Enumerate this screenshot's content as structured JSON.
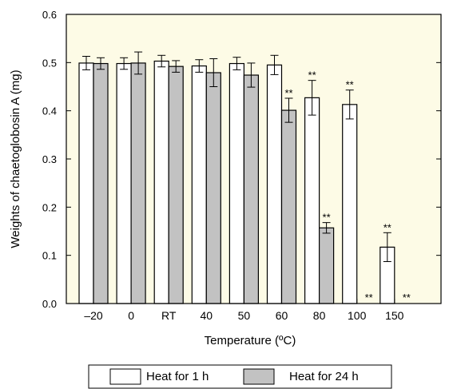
{
  "chart_data": {
    "type": "bar",
    "title": "",
    "xlabel": "Temperature (ºC)",
    "ylabel": "Weights of chaetoglobosin A (mg)",
    "categories": [
      "–20",
      "0",
      "RT",
      "40",
      "50",
      "60",
      "80",
      "100",
      "150"
    ],
    "ylim": [
      0,
      0.6
    ],
    "yticks": [
      "0.0",
      "0.1",
      "0.2",
      "0.3",
      "0.4",
      "0.5",
      "0.6"
    ],
    "grid": false,
    "legend_position": "bottom",
    "plot_background": "#fdfbe6",
    "series": [
      {
        "name": "Heat for 1 h",
        "fill": "#ffffff",
        "values": [
          0.499,
          0.498,
          0.503,
          0.493,
          0.498,
          0.495,
          0.427,
          0.413,
          0.117
        ],
        "errors": [
          0.014,
          0.012,
          0.012,
          0.013,
          0.013,
          0.02,
          0.036,
          0.03,
          0.03
        ],
        "annotations": [
          "",
          "",
          "",
          "",
          "",
          "",
          "**",
          "**",
          "**"
        ]
      },
      {
        "name": "Heat for 24 h",
        "fill": "#c2c2c2",
        "values": [
          0.498,
          0.499,
          0.492,
          0.479,
          0.474,
          0.401,
          0.157,
          0,
          0
        ],
        "errors": [
          0.012,
          0.023,
          0.012,
          0.029,
          0.025,
          0.025,
          0.011,
          0,
          0
        ],
        "annotations": [
          "",
          "",
          "",
          "",
          "",
          "**",
          "**",
          "**",
          "**"
        ]
      }
    ]
  }
}
